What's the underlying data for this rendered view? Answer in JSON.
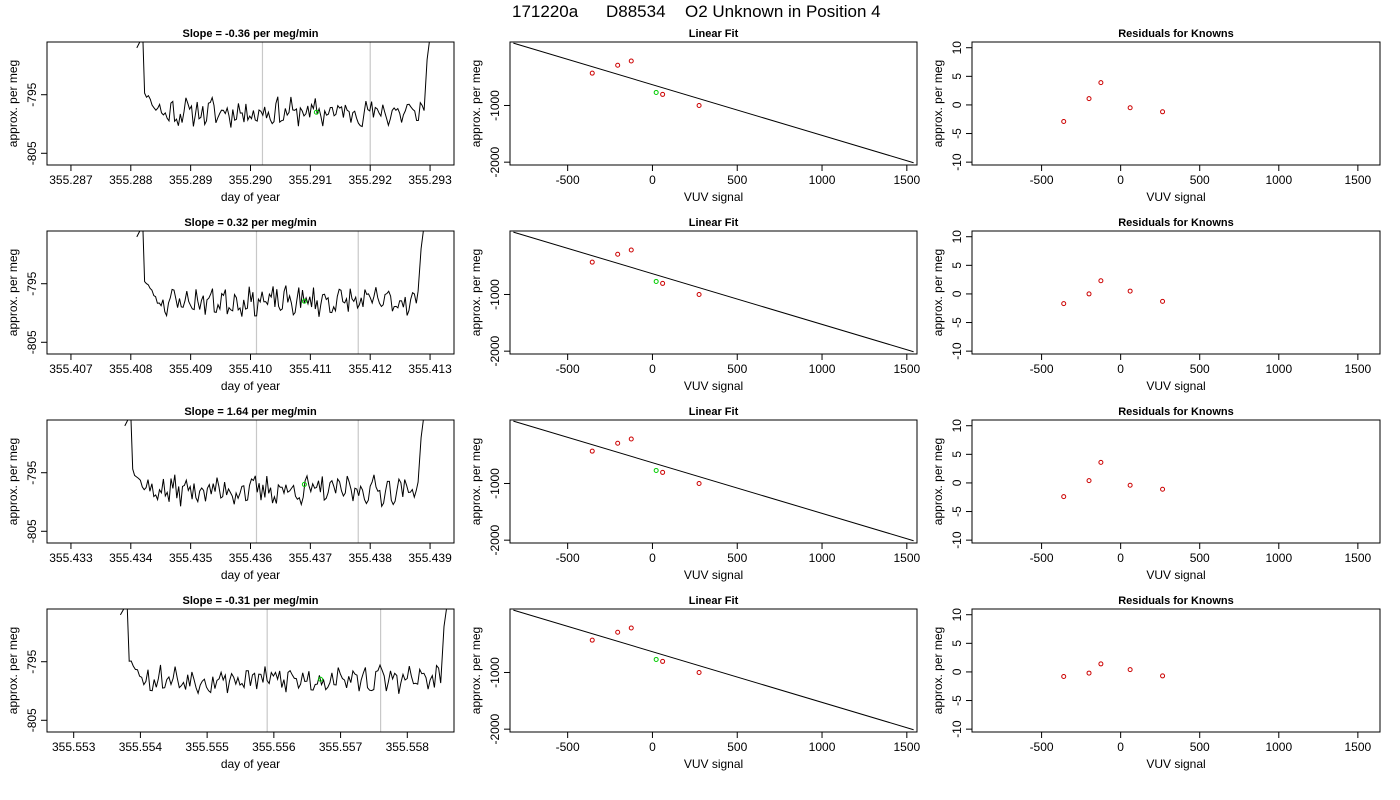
{
  "page": {
    "title_parts": [
      "171220a",
      "D88534",
      "O2 Unknown in Position  4"
    ]
  },
  "colors": {
    "line": "#000000",
    "known_point": "#cc0000",
    "unknown_point": "#00cc00",
    "grid_vertical": "#c8c8c8",
    "frame": "#000000"
  },
  "chart_data": [
    {
      "type": "line",
      "row": 0,
      "col": 0,
      "title": "Slope =  -0.36  per meg/min",
      "xlabel": "day of year",
      "ylabel": "approx. per meg",
      "xlim": [
        355.2866,
        355.2934
      ],
      "ylim": [
        -807,
        -786
      ],
      "x_ticks": [
        355.287,
        355.288,
        355.289,
        355.29,
        355.291,
        355.292,
        355.293
      ],
      "x_tick_labels": [
        "355.287",
        "355.288",
        "355.289",
        "355.290",
        "355.291",
        "355.292",
        "355.293"
      ],
      "y_ticks": [
        -795,
        -805
      ],
      "y_tick_labels": [
        "-795",
        "-805"
      ],
      "vlines": [
        355.2902,
        355.292
      ],
      "trace": {
        "start": 355.2882,
        "end": 355.2929,
        "mean": -798,
        "amp": 2.0,
        "seed": 11,
        "start_y": -787,
        "end_y": -785
      },
      "point": {
        "x": 355.2911,
        "y": -798
      }
    },
    {
      "type": "scatter",
      "row": 0,
      "col": 1,
      "title": "Linear Fit",
      "xlabel": "VUV signal",
      "ylabel": "approx. per meg",
      "xlim": [
        -840,
        1560
      ],
      "ylim": [
        -2050,
        120
      ],
      "x_ticks": [
        -500,
        0,
        500,
        1000,
        1500
      ],
      "x_tick_labels": [
        "-500",
        "0",
        "500",
        "1000",
        "1500"
      ],
      "y_ticks": [
        -1000,
        -2000
      ],
      "y_tick_labels": [
        "-1000",
        "-2000"
      ],
      "line": {
        "x": [
          -820,
          1540
        ],
        "y": [
          100,
          -2010
        ]
      },
      "knowns": {
        "x": [
          -355,
          -205,
          -125,
          60,
          275
        ],
        "y": [
          -430,
          -290,
          -215,
          -805,
          -1000
        ]
      },
      "unknown": {
        "x": 22,
        "y": -770
      }
    },
    {
      "type": "scatter",
      "row": 0,
      "col": 2,
      "title": "Residuals for Knowns",
      "xlabel": "VUV signal",
      "ylabel": "approx. per meg",
      "xlim": [
        -940,
        1640
      ],
      "ylim": [
        -10.5,
        11
      ],
      "x_ticks": [
        -500,
        0,
        500,
        1000,
        1500
      ],
      "x_tick_labels": [
        "-500",
        "0",
        "500",
        "1000",
        "1500"
      ],
      "y_ticks": [
        -10,
        -5,
        0,
        5,
        10
      ],
      "y_tick_labels": [
        "-10",
        "-5",
        "0",
        "5",
        "10"
      ],
      "knowns": {
        "x": [
          -360,
          -200,
          -125,
          60,
          265
        ],
        "y": [
          -2.9,
          1.1,
          3.9,
          -0.5,
          -1.2
        ]
      }
    },
    {
      "type": "line",
      "row": 1,
      "col": 0,
      "title": "Slope =  0.32  per meg/min",
      "xlabel": "day of year",
      "ylabel": "approx. per meg",
      "xlim": [
        355.4066,
        355.4134
      ],
      "ylim": [
        -807,
        -786
      ],
      "x_ticks": [
        355.407,
        355.408,
        355.409,
        355.41,
        355.411,
        355.412,
        355.413
      ],
      "x_tick_labels": [
        "355.407",
        "355.408",
        "355.409",
        "355.410",
        "355.411",
        "355.412",
        "355.413"
      ],
      "y_ticks": [
        -795,
        -805
      ],
      "y_tick_labels": [
        "-795",
        "-805"
      ],
      "vlines": [
        355.4101,
        355.4118
      ],
      "trace": {
        "start": 355.4082,
        "end": 355.4128,
        "mean": -798,
        "amp": 2.0,
        "seed": 23,
        "start_y": -787,
        "end_y": -785
      },
      "point": {
        "x": 355.4109,
        "y": -798
      }
    },
    {
      "type": "scatter",
      "row": 1,
      "col": 1,
      "title": "Linear Fit",
      "xlabel": "VUV signal",
      "ylabel": "approx. per meg",
      "xlim": [
        -840,
        1560
      ],
      "ylim": [
        -2050,
        120
      ],
      "x_ticks": [
        -500,
        0,
        500,
        1000,
        1500
      ],
      "x_tick_labels": [
        "-500",
        "0",
        "500",
        "1000",
        "1500"
      ],
      "y_ticks": [
        -1000,
        -2000
      ],
      "y_tick_labels": [
        "-1000",
        "-2000"
      ],
      "line": {
        "x": [
          -820,
          1540
        ],
        "y": [
          100,
          -2010
        ]
      },
      "knowns": {
        "x": [
          -355,
          -205,
          -125,
          60,
          275
        ],
        "y": [
          -430,
          -290,
          -215,
          -805,
          -1000
        ]
      },
      "unknown": {
        "x": 22,
        "y": -770
      }
    },
    {
      "type": "scatter",
      "row": 1,
      "col": 2,
      "title": "Residuals for Knowns",
      "xlabel": "VUV signal",
      "ylabel": "approx. per meg",
      "xlim": [
        -940,
        1640
      ],
      "ylim": [
        -10.5,
        11
      ],
      "x_ticks": [
        -500,
        0,
        500,
        1000,
        1500
      ],
      "x_tick_labels": [
        "-500",
        "0",
        "500",
        "1000",
        "1500"
      ],
      "y_ticks": [
        -10,
        -5,
        0,
        5,
        10
      ],
      "y_tick_labels": [
        "-10",
        "-5",
        "0",
        "5",
        "10"
      ],
      "knowns": {
        "x": [
          -360,
          -200,
          -125,
          60,
          265
        ],
        "y": [
          -1.7,
          0.0,
          2.3,
          0.5,
          -1.3
        ]
      }
    },
    {
      "type": "line",
      "row": 2,
      "col": 0,
      "title": "Slope =  1.64  per meg/min",
      "xlabel": "day of year",
      "ylabel": "approx. per meg",
      "xlim": [
        355.4326,
        355.4394
      ],
      "ylim": [
        -807,
        -786
      ],
      "x_ticks": [
        355.433,
        355.434,
        355.435,
        355.436,
        355.437,
        355.438,
        355.439
      ],
      "x_tick_labels": [
        "355.433",
        "355.434",
        "355.435",
        "355.436",
        "355.437",
        "355.438",
        "355.439"
      ],
      "y_ticks": [
        -795,
        -805
      ],
      "y_tick_labels": [
        "-795",
        "-805"
      ],
      "vlines": [
        355.4361,
        355.4378
      ],
      "trace": {
        "start": 355.434,
        "end": 355.4388,
        "mean": -798,
        "amp": 2.0,
        "seed": 37,
        "start_y": -787,
        "end_y": -785
      },
      "point": {
        "x": 355.4369,
        "y": -797
      }
    },
    {
      "type": "scatter",
      "row": 2,
      "col": 1,
      "title": "Linear Fit",
      "xlabel": "VUV signal",
      "ylabel": "approx. per meg",
      "xlim": [
        -840,
        1560
      ],
      "ylim": [
        -2050,
        120
      ],
      "x_ticks": [
        -500,
        0,
        500,
        1000,
        1500
      ],
      "x_tick_labels": [
        "-500",
        "0",
        "500",
        "1000",
        "1500"
      ],
      "y_ticks": [
        -1000,
        -2000
      ],
      "y_tick_labels": [
        "-1000",
        "-2000"
      ],
      "line": {
        "x": [
          -820,
          1540
        ],
        "y": [
          100,
          -2010
        ]
      },
      "knowns": {
        "x": [
          -355,
          -205,
          -125,
          60,
          275
        ],
        "y": [
          -430,
          -290,
          -215,
          -805,
          -1000
        ]
      },
      "unknown": {
        "x": 22,
        "y": -770
      }
    },
    {
      "type": "scatter",
      "row": 2,
      "col": 2,
      "title": "Residuals for Knowns",
      "xlabel": "VUV signal",
      "ylabel": "approx. per meg",
      "xlim": [
        -940,
        1640
      ],
      "ylim": [
        -10.5,
        11
      ],
      "x_ticks": [
        -500,
        0,
        500,
        1000,
        1500
      ],
      "x_tick_labels": [
        "-500",
        "0",
        "500",
        "1000",
        "1500"
      ],
      "y_ticks": [
        -10,
        -5,
        0,
        5,
        10
      ],
      "y_tick_labels": [
        "-10",
        "-5",
        "0",
        "5",
        "10"
      ],
      "knowns": {
        "x": [
          -360,
          -200,
          -125,
          60,
          265
        ],
        "y": [
          -2.4,
          0.4,
          3.6,
          -0.4,
          -1.1
        ]
      }
    },
    {
      "type": "line",
      "row": 3,
      "col": 0,
      "title": "Slope =  -0.31  per meg/min",
      "xlabel": "day of year",
      "ylabel": "approx. per meg",
      "xlim": [
        355.5526,
        355.5587
      ],
      "ylim": [
        -807,
        -786
      ],
      "x_ticks": [
        355.553,
        355.554,
        355.555,
        355.556,
        355.557,
        355.558
      ],
      "x_tick_labels": [
        "355.553",
        "355.554",
        "355.555",
        "355.556",
        "355.557",
        "355.558"
      ],
      "y_ticks": [
        -795,
        -805
      ],
      "y_tick_labels": [
        "-795",
        "-805"
      ],
      "vlines": [
        355.5559,
        355.5576
      ],
      "trace": {
        "start": 355.5538,
        "end": 355.5585,
        "mean": -798,
        "amp": 2.0,
        "seed": 53,
        "start_y": -787,
        "end_y": -785
      },
      "point": {
        "x": 355.5567,
        "y": -798
      }
    },
    {
      "type": "scatter",
      "row": 3,
      "col": 1,
      "title": "Linear Fit",
      "xlabel": "VUV signal",
      "ylabel": "approx. per meg",
      "xlim": [
        -840,
        1560
      ],
      "ylim": [
        -2050,
        120
      ],
      "x_ticks": [
        -500,
        0,
        500,
        1000,
        1500
      ],
      "x_tick_labels": [
        "-500",
        "0",
        "500",
        "1000",
        "1500"
      ],
      "y_ticks": [
        -1000,
        -2000
      ],
      "y_tick_labels": [
        "-1000",
        "-2000"
      ],
      "line": {
        "x": [
          -820,
          1540
        ],
        "y": [
          100,
          -2010
        ]
      },
      "knowns": {
        "x": [
          -355,
          -205,
          -125,
          60,
          275
        ],
        "y": [
          -430,
          -290,
          -215,
          -805,
          -1000
        ]
      },
      "unknown": {
        "x": 22,
        "y": -770
      }
    },
    {
      "type": "scatter",
      "row": 3,
      "col": 2,
      "title": "Residuals for Knowns",
      "xlabel": "VUV signal",
      "ylabel": "approx. per meg",
      "xlim": [
        -940,
        1640
      ],
      "ylim": [
        -10.5,
        11
      ],
      "x_ticks": [
        -500,
        0,
        500,
        1000,
        1500
      ],
      "x_tick_labels": [
        "-500",
        "0",
        "500",
        "1000",
        "1500"
      ],
      "y_ticks": [
        -10,
        -5,
        0,
        5,
        10
      ],
      "y_tick_labels": [
        "-10",
        "-5",
        "0",
        "5",
        "10"
      ],
      "knowns": {
        "x": [
          -360,
          -200,
          -125,
          60,
          265
        ],
        "y": [
          -0.8,
          -0.2,
          1.4,
          0.4,
          -0.7
        ]
      }
    }
  ]
}
